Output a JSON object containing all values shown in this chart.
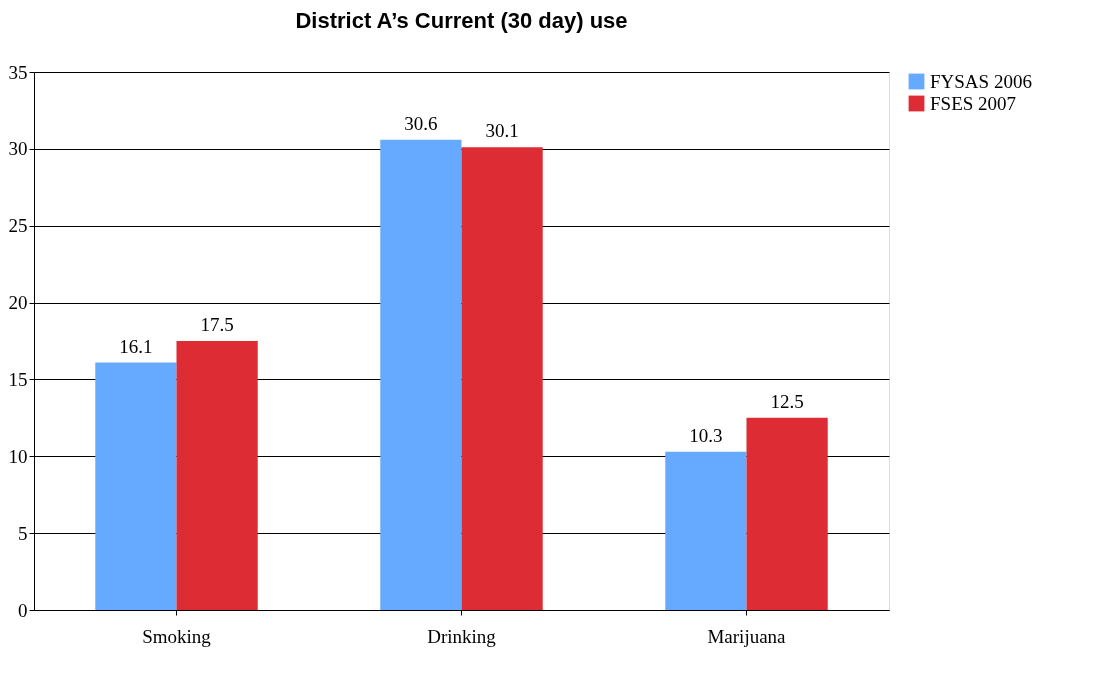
{
  "chart_data": {
    "type": "bar",
    "title": "District A’s Current (30 day) use",
    "categories": [
      "Smoking",
      "Drinking",
      "Marijuana"
    ],
    "series": [
      {
        "name": "FYSAS 2006",
        "color": "#66aaff",
        "values": [
          16.1,
          30.6,
          10.3
        ]
      },
      {
        "name": "FSES 2007",
        "color": "#dd2c33",
        "values": [
          17.5,
          30.1,
          12.5
        ]
      }
    ],
    "ylim": [
      0,
      35
    ],
    "yticks": [
      0,
      5,
      10,
      15,
      20,
      25,
      30,
      35
    ],
    "grid": "y",
    "legend": "right",
    "data_labels": true
  }
}
